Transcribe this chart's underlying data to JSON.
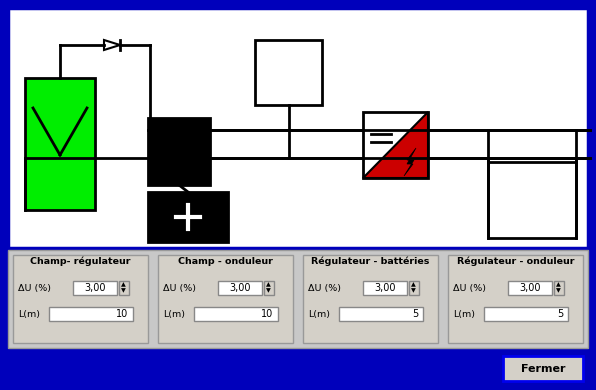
{
  "bg_color": "#0000BB",
  "diagram_bg": "#FFFFFF",
  "sections": [
    {
      "title": "Champ- régulateur",
      "du": "3,00",
      "lm": "10"
    },
    {
      "title": "Champ - onduleur",
      "du": "3,00",
      "lm": "10"
    },
    {
      "title": "Régulateur - battéries",
      "du": "3,00",
      "lm": "5"
    },
    {
      "title": "Régulateur - onduleur",
      "du": "3,00",
      "lm": "5"
    }
  ],
  "fermer_label": "Fermer",
  "solar_color": "#00EE00",
  "reg_color": "#000000",
  "bat_color": "#000000",
  "inv_red": "#CC0000"
}
